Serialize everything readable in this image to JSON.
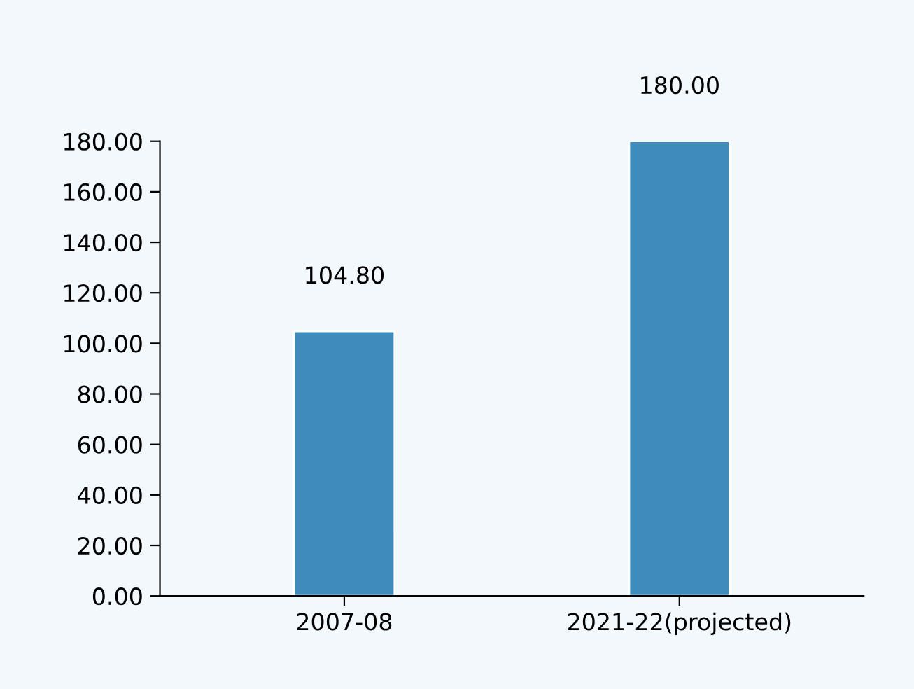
{
  "chart_data": {
    "type": "bar",
    "categories": [
      "2007-08",
      "2021-22(projected)"
    ],
    "values": [
      104.8,
      180.0
    ],
    "value_labels": [
      "104.80",
      "180.00"
    ],
    "color": "#3f8bbb",
    "ylim": [
      0,
      180
    ],
    "yticks": [
      {
        "value": 0,
        "label": "0.00"
      },
      {
        "value": 20,
        "label": "20.00"
      },
      {
        "value": 40,
        "label": "40.00"
      },
      {
        "value": 60,
        "label": "60.00"
      },
      {
        "value": 80,
        "label": "80.00"
      },
      {
        "value": 100,
        "label": "100.00"
      },
      {
        "value": 120,
        "label": "120.00"
      },
      {
        "value": 140,
        "label": "140.00"
      },
      {
        "value": 160,
        "label": "160.00"
      },
      {
        "value": 180,
        "label": "180.00"
      }
    ],
    "grid": false,
    "legend": false
  }
}
